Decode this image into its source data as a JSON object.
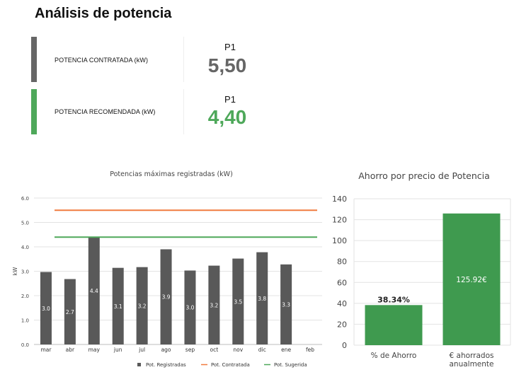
{
  "header": {
    "title": "Análisis de potencia"
  },
  "cards": [
    {
      "label": "POTENCIA CONTRATADA (kW)",
      "period": "P1",
      "value": "5,50",
      "color": "#666666",
      "value_color": "#666666"
    },
    {
      "label": "POTENCIA RECOMENDADA (kW)",
      "period": "P1",
      "value": "4,40",
      "color": "#4ea85a",
      "value_color": "#4ea85a"
    }
  ],
  "colors": {
    "registradas": "#595959",
    "contratada": "#f07b3f",
    "sugerida": "#4ea85a",
    "ahorro": "#3f9a4f"
  },
  "chart_data": [
    {
      "type": "bar",
      "title": "Potencias máximas registradas (kW)",
      "ylabel": "kW",
      "ylim": [
        0,
        6
      ],
      "yticks": [
        "0.0",
        "1.0",
        "2.0",
        "3.0",
        "4.0",
        "5.0",
        "6.0"
      ],
      "categories": [
        "mar",
        "abr",
        "may",
        "jun",
        "jul",
        "ago",
        "sep",
        "oct",
        "nov",
        "dic",
        "ene",
        "feb"
      ],
      "series": [
        {
          "name": "Pot. Registradas",
          "values": [
            2.97,
            2.68,
            4.4,
            3.14,
            3.17,
            3.9,
            3.03,
            3.23,
            3.52,
            3.78,
            3.28,
            null
          ],
          "labels": [
            "3.0",
            "2.7",
            "4.4",
            "3.1",
            "3.2",
            "3.9",
            "3.0",
            "3.2",
            "3.5",
            "3.8",
            "3.3",
            ""
          ]
        },
        {
          "name": "Pot. Contratada",
          "value": 5.5
        },
        {
          "name": "Pot. Sugerida",
          "value": 4.4
        }
      ],
      "grid": true,
      "legend": "bottom"
    },
    {
      "type": "bar",
      "title": "Ahorro por precio de Potencia",
      "ylim": [
        0,
        140
      ],
      "yticks": [
        "0",
        "20",
        "40",
        "60",
        "80",
        "100",
        "120",
        "140"
      ],
      "categories": [
        "% de Ahorro",
        "€ ahorrados\nanualmente"
      ],
      "values": [
        38.34,
        125.92
      ],
      "labels": [
        "38.34%",
        "125.92€"
      ],
      "grid": true
    }
  ]
}
